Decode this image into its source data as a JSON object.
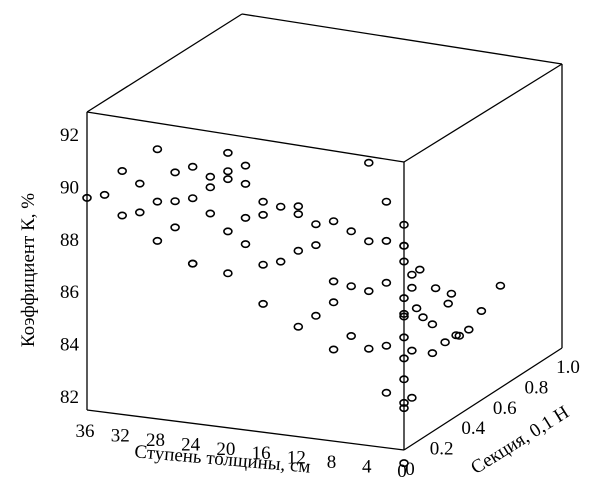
{
  "chart_data": {
    "type": "scatter",
    "projection": "3d",
    "title": "",
    "ylabel": "Коэффициент К, %",
    "xlabel": "Ступень толщины, см",
    "zlabel": "Секция, 0,1 Н",
    "y_ticks": [
      "82",
      "84",
      "86",
      "88",
      "90",
      "92"
    ],
    "x_ticks": [
      "36",
      "32",
      "28",
      "24",
      "20",
      "16",
      "12",
      "8",
      "4",
      "0"
    ],
    "z_ticks": [
      "0",
      "0.2",
      "0.4",
      "0.6",
      "0.8",
      "1.0"
    ],
    "ylim": [
      81.5,
      92.5
    ],
    "xlim": [
      0,
      36
    ],
    "zlim": [
      0,
      1
    ],
    "marker": "open-circle",
    "series": [
      {
        "points": [
          {
            "x": 36,
            "y": 89.6,
            "z": 0.0
          },
          {
            "x": 34,
            "y": 89.8,
            "z": 0.0
          },
          {
            "x": 32,
            "y": 90.8,
            "z": 0.0
          },
          {
            "x": 32,
            "y": 89.1,
            "z": 0.0
          },
          {
            "x": 30,
            "y": 89.3,
            "z": 0.0
          },
          {
            "x": 30,
            "y": 90.4,
            "z": 0.0
          },
          {
            "x": 28,
            "y": 91.8,
            "z": 0.0
          },
          {
            "x": 28,
            "y": 89.8,
            "z": 0.0
          },
          {
            "x": 28,
            "y": 88.3,
            "z": 0.0
          },
          {
            "x": 26,
            "y": 91.0,
            "z": 0.0
          },
          {
            "x": 26,
            "y": 89.9,
            "z": 0.0
          },
          {
            "x": 26,
            "y": 88.9,
            "z": 0.0
          },
          {
            "x": 24,
            "y": 91.3,
            "z": 0.0
          },
          {
            "x": 24,
            "y": 90.1,
            "z": 0.0
          },
          {
            "x": 24,
            "y": 87.6,
            "z": 0.0
          },
          {
            "x": 24,
            "y": 87.6,
            "z": 0.0
          },
          {
            "x": 22,
            "y": 91.0,
            "z": 0.0
          },
          {
            "x": 22,
            "y": 90.6,
            "z": 0.0
          },
          {
            "x": 22,
            "y": 89.6,
            "z": 0.0
          },
          {
            "x": 20,
            "y": 91.3,
            "z": 0.0
          },
          {
            "x": 20,
            "y": 91.0,
            "z": 0.0
          },
          {
            "x": 20,
            "y": 89.0,
            "z": 0.0
          },
          {
            "x": 18,
            "y": 91.6,
            "z": 0.0
          },
          {
            "x": 18,
            "y": 90.9,
            "z": 0.0
          },
          {
            "x": 18,
            "y": 89.6,
            "z": 0.0
          },
          {
            "x": 16,
            "y": 90.3,
            "z": 0.0
          },
          {
            "x": 16,
            "y": 89.8,
            "z": 0.0
          },
          {
            "x": 16,
            "y": 87.9,
            "z": 0.0
          },
          {
            "x": 16,
            "y": 86.4,
            "z": 0.0
          },
          {
            "x": 14,
            "y": 90.2,
            "z": 0.0
          },
          {
            "x": 14,
            "y": 88.1,
            "z": 0.0
          },
          {
            "x": 12,
            "y": 90.0,
            "z": 0.0
          },
          {
            "x": 12,
            "y": 88.6,
            "z": 0.0
          },
          {
            "x": 12,
            "y": 85.7,
            "z": 0.0
          },
          {
            "x": 10,
            "y": 89.7,
            "z": 0.0
          },
          {
            "x": 10,
            "y": 88.9,
            "z": 0.0
          },
          {
            "x": 10,
            "y": 86.2,
            "z": 0.0
          },
          {
            "x": 8,
            "y": 89.9,
            "z": 0.0
          },
          {
            "x": 8,
            "y": 87.6,
            "z": 0.0
          },
          {
            "x": 8,
            "y": 86.8,
            "z": 0.0
          },
          {
            "x": 8,
            "y": 85.0,
            "z": 0.0
          },
          {
            "x": 6,
            "y": 89.6,
            "z": 0.0
          },
          {
            "x": 6,
            "y": 87.5,
            "z": 0.0
          },
          {
            "x": 6,
            "y": 85.6,
            "z": 0.0
          },
          {
            "x": 4,
            "y": 89.3,
            "z": 0.0
          },
          {
            "x": 4,
            "y": 87.4,
            "z": 0.0
          },
          {
            "x": 4,
            "y": 85.2,
            "z": 0.0
          },
          {
            "x": 2,
            "y": 89.4,
            "z": 0.0
          },
          {
            "x": 2,
            "y": 87.8,
            "z": 0.0
          },
          {
            "x": 2,
            "y": 85.4,
            "z": 0.0
          },
          {
            "x": 2,
            "y": 83.6,
            "z": 0.0
          },
          {
            "x": 0,
            "y": 89.3,
            "z": 0.0
          },
          {
            "x": 0,
            "y": 86.6,
            "z": 0.0
          },
          {
            "x": 0,
            "y": 83.3,
            "z": 0.0
          },
          {
            "x": 0,
            "y": 83.1,
            "z": 0.0
          },
          {
            "x": 0,
            "y": 88.7,
            "z": 0.0
          },
          {
            "x": 0,
            "y": 87.3,
            "z": 0.0
          },
          {
            "x": 0,
            "y": 86.7,
            "z": 0.0
          },
          {
            "x": 0,
            "y": 85.8,
            "z": 0.0
          },
          {
            "x": 0,
            "y": 85.0,
            "z": 0.0
          },
          {
            "x": 0,
            "y": 84.2,
            "z": 0.0
          },
          {
            "x": 0,
            "y": 81.0,
            "z": 0.0
          },
          {
            "x": 0,
            "y": 89.3,
            "z": 0.0
          },
          {
            "x": 0,
            "y": 90.1,
            "z": 0.0
          },
          {
            "x": 2,
            "y": 90.9,
            "z": 0.0
          },
          {
            "x": 4,
            "y": 92.3,
            "z": 0.0
          },
          {
            "x": 12,
            "y": 90.3,
            "z": 0.0
          },
          {
            "x": 20,
            "y": 92.0,
            "z": 0.0
          },
          {
            "x": 18,
            "y": 88.6,
            "z": 0.0
          },
          {
            "x": 20,
            "y": 87.4,
            "z": 0.0
          },
          {
            "x": 0,
            "y": 88.0,
            "z": 0.05
          },
          {
            "x": 0,
            "y": 86.6,
            "z": 0.08
          },
          {
            "x": 0,
            "y": 85.1,
            "z": 0.05
          },
          {
            "x": 0,
            "y": 86.1,
            "z": 0.12
          },
          {
            "x": 0,
            "y": 85.6,
            "z": 0.18
          },
          {
            "x": 0,
            "y": 83.3,
            "z": 0.05
          },
          {
            "x": 0,
            "y": 88.0,
            "z": 0.1
          },
          {
            "x": 0,
            "y": 84.5,
            "z": 0.18
          },
          {
            "x": 0,
            "y": 84.6,
            "z": 0.26
          },
          {
            "x": 0,
            "y": 84.6,
            "z": 0.33
          },
          {
            "x": 0,
            "y": 84.5,
            "z": 0.41
          },
          {
            "x": 0,
            "y": 84.9,
            "z": 0.49
          },
          {
            "x": 0,
            "y": 85.4,
            "z": 0.61
          },
          {
            "x": 0,
            "y": 87.5,
            "z": 0.05
          },
          {
            "x": 0,
            "y": 86.9,
            "z": 0.2
          },
          {
            "x": 0,
            "y": 86.3,
            "z": 0.3
          },
          {
            "x": 0,
            "y": 86.0,
            "z": 0.28
          },
          {
            "x": 0,
            "y": 84.5,
            "z": 0.35
          }
        ]
      }
    ]
  }
}
